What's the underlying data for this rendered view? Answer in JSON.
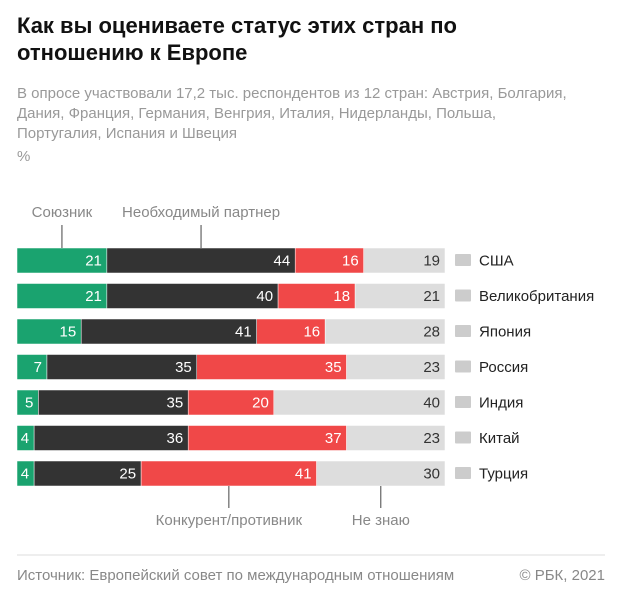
{
  "chart_data": {
    "type": "bar",
    "orientation": "horizontal",
    "stacked": true,
    "title": "Как вы оцениваете статус этих стран по отношению к Европе",
    "subtitle": "В опросе участвовали 17,2 тыс. респондентов из 12 стран: Австрия, Болгария, Дания, Франция, Германия, Венгрия, Италия, Нидерланды, Польша, Португалия, Испания и Швеция",
    "unit": "%",
    "categories": [
      "США",
      "Великобритания",
      "Япония",
      "Россия",
      "Индия",
      "Китай",
      "Турция"
    ],
    "series": [
      {
        "name": "Союзник",
        "color": "#1aa36f",
        "values": [
          21,
          21,
          15,
          7,
          5,
          4,
          4
        ]
      },
      {
        "name": "Необходимый партнер",
        "color": "#333333",
        "values": [
          44,
          40,
          41,
          35,
          35,
          36,
          25
        ]
      },
      {
        "name": "Конкурент/противник",
        "color": "#f04848",
        "values": [
          16,
          18,
          16,
          35,
          20,
          37,
          41
        ]
      },
      {
        "name": "Не знаю",
        "color": "#dddddd",
        "values": [
          19,
          21,
          28,
          23,
          40,
          23,
          30
        ]
      }
    ],
    "xlim": [
      0,
      100
    ],
    "source": "Источник: Европейский совет по международным отношениям",
    "copyright": "© РБК, 2021"
  }
}
